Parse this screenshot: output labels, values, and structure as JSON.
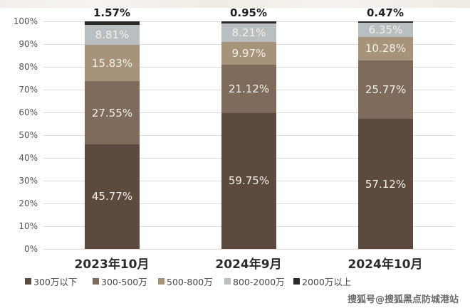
{
  "chart_data": {
    "type": "bar",
    "stacked": true,
    "title": "",
    "xlabel": "",
    "ylabel": "",
    "ylim": [
      0,
      100
    ],
    "yticks": [
      "0%",
      "10%",
      "20%",
      "30%",
      "40%",
      "50%",
      "60%",
      "70%",
      "80%",
      "90%",
      "100%"
    ],
    "grid": true,
    "legend_position": "bottom",
    "categories": [
      "2023年10月",
      "2024年9月",
      "2024年10月"
    ],
    "series": [
      {
        "name": "300万以下",
        "color": "#5b4a3d",
        "values": [
          45.77,
          59.75,
          57.12
        ]
      },
      {
        "name": "300-500万",
        "color": "#7e6b5b",
        "values": [
          27.55,
          21.12,
          25.77
        ]
      },
      {
        "name": "500-800万",
        "color": "#a69379",
        "values": [
          15.83,
          9.97,
          10.28
        ]
      },
      {
        "name": "800-2000万",
        "color": "#b9bec1",
        "values": [
          8.81,
          8.21,
          6.35
        ]
      },
      {
        "name": "2000万以上",
        "color": "#2a2a2a",
        "values": [
          1.57,
          0.95,
          0.47
        ]
      }
    ],
    "labels": [
      [
        "45.77%",
        "27.55%",
        "15.83%",
        "8.81%",
        "1.57%"
      ],
      [
        "59.75%",
        "21.12%",
        "9.97%",
        "8.21%",
        "0.95%"
      ],
      [
        "57.12%",
        "25.77%",
        "10.28%",
        "6.35%",
        "0.47%"
      ]
    ]
  },
  "watermark": "搜狐号@搜狐黑点防城港站"
}
